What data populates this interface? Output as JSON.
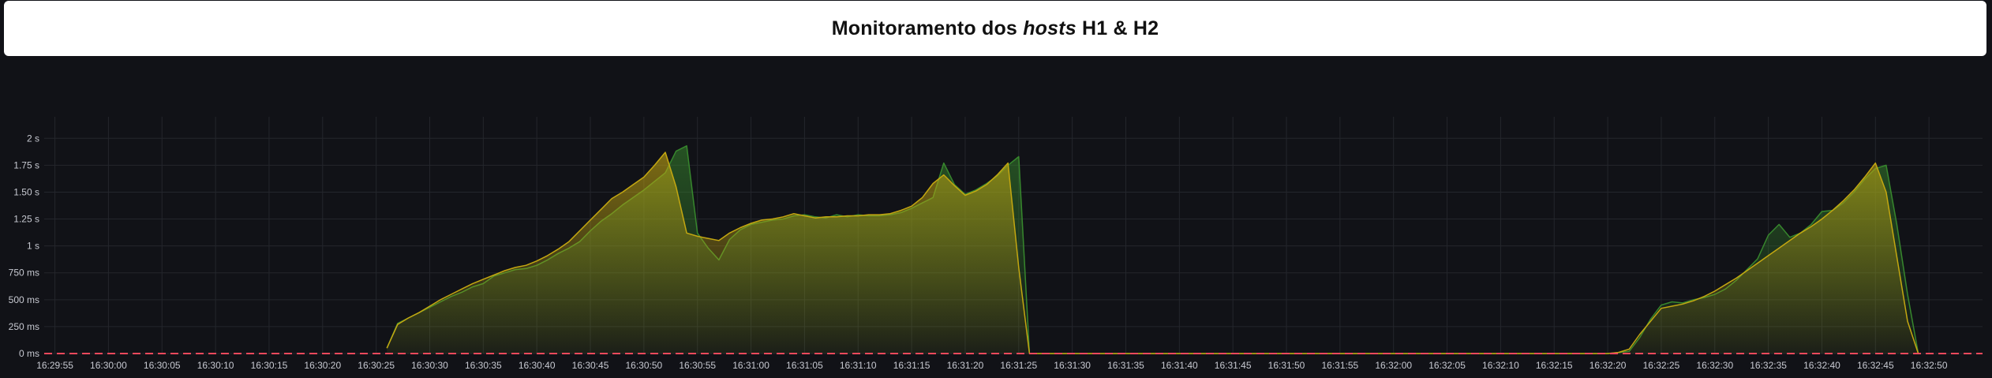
{
  "header": {
    "title_prefix": "Monitoramento dos ",
    "title_emphasis": "hosts",
    "title_suffix": " H1 & H2"
  },
  "chart_data": {
    "type": "area",
    "title": "Monitoramento dos hosts H1 & H2",
    "xlabel": "",
    "ylabel": "",
    "x_ticks": [
      "16:29:55",
      "16:30:00",
      "16:30:05",
      "16:30:10",
      "16:30:15",
      "16:30:20",
      "16:30:25",
      "16:30:30",
      "16:30:35",
      "16:30:40",
      "16:30:45",
      "16:30:50",
      "16:30:55",
      "16:31:00",
      "16:31:05",
      "16:31:10",
      "16:31:15",
      "16:31:20",
      "16:31:25",
      "16:31:30",
      "16:31:35",
      "16:31:40",
      "16:31:45",
      "16:31:50",
      "16:31:55",
      "16:32:00",
      "16:32:05",
      "16:32:10",
      "16:32:15",
      "16:32:20",
      "16:32:25",
      "16:32:30",
      "16:32:35",
      "16:32:40",
      "16:32:45",
      "16:32:50"
    ],
    "x_range": [
      "16:29:54",
      "16:32:55"
    ],
    "ylim": [
      0,
      2.2
    ],
    "y_ticks": [
      {
        "value": 0,
        "label": "0 ms"
      },
      {
        "value": 0.25,
        "label": "250 ms"
      },
      {
        "value": 0.5,
        "label": "500 ms"
      },
      {
        "value": 0.75,
        "label": "750 ms"
      },
      {
        "value": 1,
        "label": "1 s"
      },
      {
        "value": 1.25,
        "label": "1.25 s"
      },
      {
        "value": 1.5,
        "label": "1.50 s"
      },
      {
        "value": 1.75,
        "label": "1.75 s"
      },
      {
        "value": 2,
        "label": "2 s"
      }
    ],
    "grid": true,
    "threshold": {
      "value": 0,
      "color": "#F2495C",
      "style": "dashed"
    },
    "series": [
      {
        "color": "#37872D",
        "points": [
          [
            "16:30:26",
            0.05
          ],
          [
            "16:30:27",
            0.28
          ],
          [
            "16:30:28",
            0.33
          ],
          [
            "16:30:29",
            0.38
          ],
          [
            "16:30:30",
            0.43
          ],
          [
            "16:30:31",
            0.48
          ],
          [
            "16:30:32",
            0.53
          ],
          [
            "16:30:33",
            0.57
          ],
          [
            "16:30:34",
            0.62
          ],
          [
            "16:30:35",
            0.65
          ],
          [
            "16:30:36",
            0.72
          ],
          [
            "16:30:37",
            0.75
          ],
          [
            "16:30:38",
            0.78
          ],
          [
            "16:30:39",
            0.79
          ],
          [
            "16:30:40",
            0.82
          ],
          [
            "16:30:41",
            0.87
          ],
          [
            "16:30:42",
            0.93
          ],
          [
            "16:30:43",
            0.98
          ],
          [
            "16:30:44",
            1.04
          ],
          [
            "16:30:45",
            1.14
          ],
          [
            "16:30:46",
            1.23
          ],
          [
            "16:30:47",
            1.3
          ],
          [
            "16:30:48",
            1.38
          ],
          [
            "16:30:49",
            1.45
          ],
          [
            "16:30:50",
            1.52
          ],
          [
            "16:30:51",
            1.6
          ],
          [
            "16:30:52",
            1.68
          ],
          [
            "16:30:53",
            1.88
          ],
          [
            "16:30:54",
            1.93
          ],
          [
            "16:30:55",
            1.12
          ],
          [
            "16:30:56",
            0.98
          ],
          [
            "16:30:57",
            0.87
          ],
          [
            "16:30:58",
            1.06
          ],
          [
            "16:30:59",
            1.15
          ],
          [
            "16:31:00",
            1.2
          ],
          [
            "16:31:01",
            1.22
          ],
          [
            "16:31:02",
            1.24
          ],
          [
            "16:31:03",
            1.25
          ],
          [
            "16:31:04",
            1.28
          ],
          [
            "16:31:05",
            1.29
          ],
          [
            "16:31:06",
            1.27
          ],
          [
            "16:31:07",
            1.26
          ],
          [
            "16:31:08",
            1.29
          ],
          [
            "16:31:09",
            1.27
          ],
          [
            "16:31:10",
            1.29
          ],
          [
            "16:31:11",
            1.28
          ],
          [
            "16:31:12",
            1.28
          ],
          [
            "16:31:13",
            1.29
          ],
          [
            "16:31:14",
            1.31
          ],
          [
            "16:31:15",
            1.35
          ],
          [
            "16:31:16",
            1.4
          ],
          [
            "16:31:17",
            1.45
          ],
          [
            "16:31:18",
            1.77
          ],
          [
            "16:31:19",
            1.57
          ],
          [
            "16:31:20",
            1.48
          ],
          [
            "16:31:21",
            1.52
          ],
          [
            "16:31:22",
            1.58
          ],
          [
            "16:31:23",
            1.65
          ],
          [
            "16:31:24",
            1.75
          ],
          [
            "16:31:25",
            1.83
          ],
          [
            "16:31:26",
            0.0
          ],
          [
            "16:31:28",
            0.0
          ],
          [
            "16:32:20",
            0.0
          ],
          [
            "16:32:21",
            0.01
          ],
          [
            "16:32:22",
            0.02
          ],
          [
            "16:32:23",
            0.15
          ],
          [
            "16:32:24",
            0.32
          ],
          [
            "16:32:25",
            0.45
          ],
          [
            "16:32:26",
            0.48
          ],
          [
            "16:32:27",
            0.47
          ],
          [
            "16:32:28",
            0.5
          ],
          [
            "16:32:29",
            0.52
          ],
          [
            "16:32:30",
            0.55
          ],
          [
            "16:32:31",
            0.6
          ],
          [
            "16:32:32",
            0.68
          ],
          [
            "16:32:33",
            0.78
          ],
          [
            "16:32:34",
            0.88
          ],
          [
            "16:32:35",
            1.1
          ],
          [
            "16:32:36",
            1.2
          ],
          [
            "16:32:37",
            1.08
          ],
          [
            "16:32:38",
            1.12
          ],
          [
            "16:32:39",
            1.2
          ],
          [
            "16:32:40",
            1.32
          ],
          [
            "16:32:41",
            1.33
          ],
          [
            "16:32:42",
            1.4
          ],
          [
            "16:32:43",
            1.5
          ],
          [
            "16:32:44",
            1.62
          ],
          [
            "16:32:45",
            1.72
          ],
          [
            "16:32:46",
            1.75
          ],
          [
            "16:32:47",
            1.2
          ],
          [
            "16:32:48",
            0.55
          ],
          [
            "16:32:49",
            0.0
          ]
        ]
      },
      {
        "color": "#C4A711",
        "points": [
          [
            "16:30:26",
            0.05
          ],
          [
            "16:30:27",
            0.27
          ],
          [
            "16:30:28",
            0.33
          ],
          [
            "16:30:29",
            0.38
          ],
          [
            "16:30:30",
            0.44
          ],
          [
            "16:30:31",
            0.5
          ],
          [
            "16:30:32",
            0.55
          ],
          [
            "16:30:33",
            0.6
          ],
          [
            "16:30:34",
            0.65
          ],
          [
            "16:30:35",
            0.69
          ],
          [
            "16:30:36",
            0.73
          ],
          [
            "16:30:37",
            0.77
          ],
          [
            "16:30:38",
            0.8
          ],
          [
            "16:30:39",
            0.82
          ],
          [
            "16:30:40",
            0.86
          ],
          [
            "16:30:41",
            0.91
          ],
          [
            "16:30:42",
            0.97
          ],
          [
            "16:30:43",
            1.04
          ],
          [
            "16:30:44",
            1.14
          ],
          [
            "16:30:45",
            1.24
          ],
          [
            "16:30:46",
            1.34
          ],
          [
            "16:30:47",
            1.44
          ],
          [
            "16:30:48",
            1.5
          ],
          [
            "16:30:49",
            1.57
          ],
          [
            "16:30:50",
            1.64
          ],
          [
            "16:30:51",
            1.75
          ],
          [
            "16:30:52",
            1.87
          ],
          [
            "16:30:53",
            1.55
          ],
          [
            "16:30:54",
            1.12
          ],
          [
            "16:30:55",
            1.09
          ],
          [
            "16:30:56",
            1.07
          ],
          [
            "16:30:57",
            1.05
          ],
          [
            "16:30:58",
            1.12
          ],
          [
            "16:30:59",
            1.17
          ],
          [
            "16:31:00",
            1.21
          ],
          [
            "16:31:01",
            1.24
          ],
          [
            "16:31:02",
            1.25
          ],
          [
            "16:31:03",
            1.27
          ],
          [
            "16:31:04",
            1.3
          ],
          [
            "16:31:05",
            1.28
          ],
          [
            "16:31:06",
            1.26
          ],
          [
            "16:31:07",
            1.27
          ],
          [
            "16:31:08",
            1.27
          ],
          [
            "16:31:09",
            1.28
          ],
          [
            "16:31:10",
            1.28
          ],
          [
            "16:31:11",
            1.29
          ],
          [
            "16:31:12",
            1.29
          ],
          [
            "16:31:13",
            1.3
          ],
          [
            "16:31:14",
            1.33
          ],
          [
            "16:31:15",
            1.37
          ],
          [
            "16:31:16",
            1.45
          ],
          [
            "16:31:17",
            1.58
          ],
          [
            "16:31:18",
            1.66
          ],
          [
            "16:31:19",
            1.56
          ],
          [
            "16:31:20",
            1.47
          ],
          [
            "16:31:21",
            1.51
          ],
          [
            "16:31:22",
            1.57
          ],
          [
            "16:31:23",
            1.66
          ],
          [
            "16:31:24",
            1.77
          ],
          [
            "16:31:25",
            0.8
          ],
          [
            "16:31:26",
            0.0
          ],
          [
            "16:31:28",
            0.0
          ],
          [
            "16:32:20",
            0.0
          ],
          [
            "16:32:21",
            0.01
          ],
          [
            "16:32:22",
            0.04
          ],
          [
            "16:32:23",
            0.18
          ],
          [
            "16:32:24",
            0.3
          ],
          [
            "16:32:25",
            0.42
          ],
          [
            "16:32:26",
            0.44
          ],
          [
            "16:32:27",
            0.46
          ],
          [
            "16:32:28",
            0.49
          ],
          [
            "16:32:29",
            0.53
          ],
          [
            "16:32:30",
            0.58
          ],
          [
            "16:32:31",
            0.64
          ],
          [
            "16:32:32",
            0.7
          ],
          [
            "16:32:33",
            0.77
          ],
          [
            "16:32:34",
            0.84
          ],
          [
            "16:32:35",
            0.91
          ],
          [
            "16:32:36",
            0.98
          ],
          [
            "16:32:37",
            1.05
          ],
          [
            "16:32:38",
            1.12
          ],
          [
            "16:32:39",
            1.18
          ],
          [
            "16:32:40",
            1.25
          ],
          [
            "16:32:41",
            1.33
          ],
          [
            "16:32:42",
            1.42
          ],
          [
            "16:32:43",
            1.52
          ],
          [
            "16:32:44",
            1.64
          ],
          [
            "16:32:45",
            1.77
          ],
          [
            "16:32:46",
            1.5
          ],
          [
            "16:32:47",
            0.9
          ],
          [
            "16:32:48",
            0.3
          ],
          [
            "16:32:49",
            0.0
          ]
        ]
      }
    ]
  }
}
